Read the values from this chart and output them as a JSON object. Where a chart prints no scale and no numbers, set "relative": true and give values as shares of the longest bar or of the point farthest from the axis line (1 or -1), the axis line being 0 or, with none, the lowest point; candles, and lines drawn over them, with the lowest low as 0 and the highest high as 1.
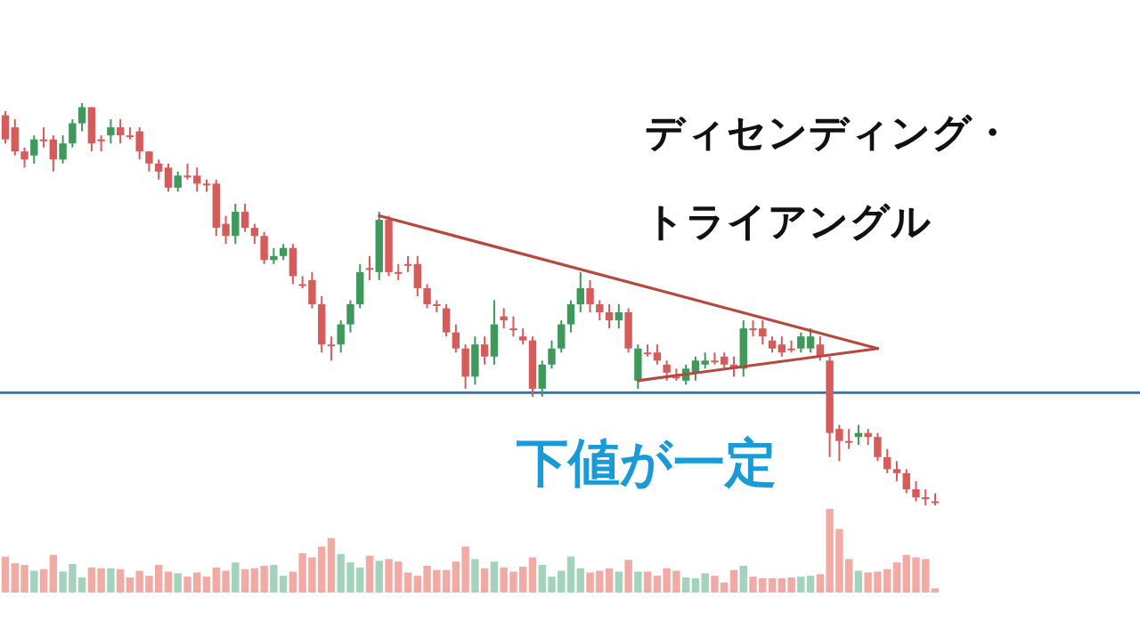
{
  "chart_data": [
    {
      "type": "candlestick",
      "relative": true,
      "categories": [
        null,
        null,
        null,
        null,
        null,
        null,
        null,
        null,
        null,
        null,
        null,
        null,
        null,
        null,
        null,
        null,
        null,
        null,
        null,
        null,
        null,
        null,
        null,
        null,
        null,
        null,
        null,
        null,
        null,
        null,
        null,
        null,
        null,
        null,
        null,
        null,
        null,
        null,
        null,
        null,
        null,
        null,
        null,
        null,
        null,
        null,
        null,
        null,
        null,
        null,
        null,
        null,
        null,
        null,
        null,
        null,
        null,
        null,
        null,
        null,
        null,
        null,
        null,
        null,
        null,
        null,
        null,
        null,
        null,
        null,
        null,
        null,
        null,
        null,
        null,
        null,
        null,
        null,
        null,
        null,
        null,
        null,
        null,
        null,
        null,
        null,
        null,
        null,
        null,
        null,
        null,
        null,
        null,
        null,
        null,
        null,
        null,
        null
      ],
      "ohlc": [
        [
          0.97,
          0.98,
          0.9,
          0.91
        ],
        [
          0.94,
          0.96,
          0.87,
          0.88
        ],
        [
          0.88,
          0.89,
          0.84,
          0.86
        ],
        [
          0.87,
          0.92,
          0.85,
          0.91
        ],
        [
          0.91,
          0.94,
          0.89,
          0.91
        ],
        [
          0.91,
          0.92,
          0.83,
          0.86
        ],
        [
          0.86,
          0.92,
          0.85,
          0.9
        ],
        [
          0.9,
          0.96,
          0.89,
          0.95
        ],
        [
          0.95,
          1.0,
          0.93,
          0.99
        ],
        [
          0.99,
          0.99,
          0.88,
          0.9
        ],
        [
          0.91,
          0.92,
          0.88,
          0.91
        ],
        [
          0.92,
          0.96,
          0.9,
          0.94
        ],
        [
          0.94,
          0.96,
          0.9,
          0.92
        ],
        [
          0.92,
          0.94,
          0.91,
          0.92
        ],
        [
          0.93,
          0.94,
          0.86,
          0.88
        ],
        [
          0.88,
          0.88,
          0.83,
          0.85
        ],
        [
          0.85,
          0.86,
          0.81,
          0.83
        ],
        [
          0.84,
          0.85,
          0.78,
          0.79
        ],
        [
          0.79,
          0.83,
          0.78,
          0.82
        ],
        [
          0.82,
          0.85,
          0.81,
          0.82
        ],
        [
          0.82,
          0.84,
          0.78,
          0.8
        ],
        [
          0.8,
          0.81,
          0.78,
          0.8
        ],
        [
          0.8,
          0.81,
          0.67,
          0.69
        ],
        [
          0.7,
          0.72,
          0.65,
          0.67
        ],
        [
          0.67,
          0.75,
          0.65,
          0.73
        ],
        [
          0.73,
          0.75,
          0.68,
          0.69
        ],
        [
          0.69,
          0.7,
          0.65,
          0.67
        ],
        [
          0.67,
          0.68,
          0.6,
          0.61
        ],
        [
          0.61,
          0.64,
          0.6,
          0.62
        ],
        [
          0.62,
          0.65,
          0.61,
          0.64
        ],
        [
          0.64,
          0.65,
          0.55,
          0.57
        ],
        [
          0.55,
          0.57,
          0.54,
          0.55
        ],
        [
          0.56,
          0.58,
          0.49,
          0.5
        ],
        [
          0.5,
          0.52,
          0.38,
          0.4
        ],
        [
          0.4,
          0.42,
          0.36,
          0.4
        ],
        [
          0.4,
          0.46,
          0.38,
          0.45
        ],
        [
          0.45,
          0.51,
          0.43,
          0.5
        ],
        [
          0.5,
          0.6,
          0.49,
          0.58
        ],
        [
          0.59,
          0.62,
          0.56,
          0.59
        ],
        [
          0.58,
          0.73,
          0.56,
          0.71
        ],
        [
          0.71,
          0.72,
          0.57,
          0.58
        ],
        [
          0.58,
          0.6,
          0.56,
          0.58
        ],
        [
          0.6,
          0.62,
          0.58,
          0.6
        ],
        [
          0.6,
          0.62,
          0.52,
          0.54
        ],
        [
          0.54,
          0.55,
          0.49,
          0.5
        ],
        [
          0.5,
          0.51,
          0.48,
          0.5
        ],
        [
          0.49,
          0.5,
          0.42,
          0.43
        ],
        [
          0.43,
          0.45,
          0.38,
          0.39
        ],
        [
          0.39,
          0.4,
          0.29,
          0.32
        ],
        [
          0.32,
          0.42,
          0.3,
          0.4
        ],
        [
          0.4,
          0.42,
          0.35,
          0.37
        ],
        [
          0.37,
          0.51,
          0.35,
          0.45
        ],
        [
          0.47,
          0.49,
          0.44,
          0.46
        ],
        [
          0.44,
          0.47,
          0.42,
          0.44
        ],
        [
          0.42,
          0.44,
          0.4,
          0.41
        ],
        [
          0.41,
          0.42,
          0.27,
          0.29
        ],
        [
          0.29,
          0.36,
          0.27,
          0.35
        ],
        [
          0.35,
          0.41,
          0.34,
          0.39
        ],
        [
          0.39,
          0.46,
          0.38,
          0.45
        ],
        [
          0.45,
          0.51,
          0.43,
          0.5
        ],
        [
          0.5,
          0.58,
          0.48,
          0.54
        ],
        [
          0.54,
          0.56,
          0.48,
          0.5
        ],
        [
          0.5,
          0.51,
          0.46,
          0.48
        ],
        [
          0.48,
          0.5,
          0.44,
          0.46
        ],
        [
          0.46,
          0.5,
          0.44,
          0.48
        ],
        [
          0.48,
          0.49,
          0.38,
          0.39
        ],
        [
          0.31,
          0.4,
          0.29,
          0.39
        ],
        [
          0.38,
          0.4,
          0.37,
          0.38
        ],
        [
          0.38,
          0.4,
          0.35,
          0.36
        ],
        [
          0.35,
          0.36,
          0.31,
          0.33
        ],
        [
          0.32,
          0.34,
          0.31,
          0.32
        ],
        [
          0.31,
          0.35,
          0.3,
          0.34
        ],
        [
          0.33,
          0.37,
          0.31,
          0.36
        ],
        [
          0.35,
          0.38,
          0.34,
          0.36
        ],
        [
          0.36,
          0.38,
          0.35,
          0.36
        ],
        [
          0.37,
          0.38,
          0.34,
          0.35
        ],
        [
          0.35,
          0.37,
          0.32,
          0.34
        ],
        [
          0.34,
          0.46,
          0.32,
          0.44
        ],
        [
          0.44,
          0.46,
          0.42,
          0.44
        ],
        [
          0.44,
          0.46,
          0.4,
          0.42
        ],
        [
          0.41,
          0.42,
          0.38,
          0.39
        ],
        [
          0.4,
          0.42,
          0.37,
          0.38
        ],
        [
          0.39,
          0.41,
          0.38,
          0.39
        ],
        [
          0.39,
          0.43,
          0.38,
          0.42
        ],
        [
          0.39,
          0.44,
          0.38,
          0.42
        ],
        [
          0.4,
          0.42,
          0.36,
          0.37
        ],
        [
          0.36,
          0.37,
          0.12,
          0.18
        ],
        [
          0.19,
          0.2,
          0.11,
          0.16
        ],
        [
          0.16,
          0.19,
          0.14,
          0.16
        ],
        [
          0.17,
          0.2,
          0.15,
          0.18
        ],
        [
          0.18,
          0.19,
          0.15,
          0.17
        ],
        [
          0.17,
          0.18,
          0.11,
          0.12
        ],
        [
          0.12,
          0.14,
          0.08,
          0.09
        ],
        [
          0.09,
          0.11,
          0.06,
          0.08
        ],
        [
          0.08,
          0.09,
          0.03,
          0.04
        ],
        [
          0.04,
          0.06,
          0.01,
          0.02
        ],
        [
          0.02,
          0.04,
          0.0,
          0.02
        ],
        [
          0.01,
          0.03,
          0.0,
          0.01
        ]
      ],
      "colors": [
        "#d55c5a",
        "#d55c5a",
        "#d55c5a",
        "#3d9a5c",
        "#d55c5a",
        "#d55c5a",
        "#3d9a5c",
        "#3d9a5c",
        "#3d9a5c",
        "#d55c5a",
        "#d55c5a",
        "#3d9a5c",
        "#d55c5a",
        "#d55c5a",
        "#d55c5a",
        "#d55c5a",
        "#d55c5a",
        "#d55c5a",
        "#3d9a5c",
        "#d55c5a",
        "#d55c5a",
        "#d55c5a",
        "#d55c5a",
        "#d55c5a",
        "#3d9a5c",
        "#d55c5a",
        "#d55c5a",
        "#d55c5a",
        "#3d9a5c",
        "#3d9a5c",
        "#d55c5a",
        "#d55c5a",
        "#d55c5a",
        "#d55c5a",
        "#d55c5a",
        "#3d9a5c",
        "#3d9a5c",
        "#3d9a5c",
        "#d55c5a",
        "#3d9a5c",
        "#d55c5a",
        "#d55c5a",
        "#d55c5a",
        "#d55c5a",
        "#d55c5a",
        "#d55c5a",
        "#d55c5a",
        "#d55c5a",
        "#d55c5a",
        "#3d9a5c",
        "#d55c5a",
        "#3d9a5c",
        "#d55c5a",
        "#d55c5a",
        "#d55c5a",
        "#d55c5a",
        "#3d9a5c",
        "#3d9a5c",
        "#3d9a5c",
        "#3d9a5c",
        "#3d9a5c",
        "#d55c5a",
        "#d55c5a",
        "#d55c5a",
        "#3d9a5c",
        "#d55c5a",
        "#3d9a5c",
        "#d55c5a",
        "#d55c5a",
        "#d55c5a",
        "#d55c5a",
        "#3d9a5c",
        "#3d9a5c",
        "#3d9a5c",
        "#d55c5a",
        "#d55c5a",
        "#d55c5a",
        "#3d9a5c",
        "#d55c5a",
        "#d55c5a",
        "#d55c5a",
        "#d55c5a",
        "#d55c5a",
        "#3d9a5c",
        "#3d9a5c",
        "#d55c5a",
        "#d55c5a",
        "#d55c5a",
        "#d55c5a",
        "#3d9a5c",
        "#d55c5a",
        "#d55c5a",
        "#d55c5a",
        "#d55c5a",
        "#d55c5a",
        "#d55c5a",
        "#d55c5a",
        "#d55c5a"
      ],
      "series": [
        {
          "type": "line",
          "color": "#b5483f",
          "values": [
            null,
            null,
            null,
            null,
            null,
            null,
            null,
            null,
            null,
            null,
            null,
            null,
            null,
            null,
            null,
            null,
            null,
            null,
            null,
            null,
            null,
            null,
            null,
            null,
            null,
            null,
            null,
            null,
            null,
            null,
            null,
            null,
            null,
            null,
            null,
            null,
            null,
            null,
            null,
            0.72,
            null,
            null,
            null,
            null,
            null,
            null,
            null,
            null,
            null,
            null,
            null,
            null,
            null,
            null,
            null,
            null,
            null,
            null,
            null,
            null,
            null,
            null,
            null,
            null,
            null,
            null,
            null,
            null,
            null,
            null,
            null,
            null,
            null,
            null,
            null,
            null,
            null,
            null,
            null,
            null,
            null,
            null,
            null,
            null,
            null,
            null,
            null,
            null,
            null,
            null,
            null,
            0.39,
            null,
            null,
            null,
            null,
            null,
            null
          ]
        },
        {
          "type": "line",
          "color": "#b5483f",
          "values": [
            null,
            null,
            null,
            null,
            null,
            null,
            null,
            null,
            null,
            null,
            null,
            null,
            null,
            null,
            null,
            null,
            null,
            null,
            null,
            null,
            null,
            null,
            null,
            null,
            null,
            null,
            null,
            null,
            null,
            null,
            null,
            null,
            null,
            null,
            null,
            null,
            null,
            null,
            null,
            null,
            null,
            null,
            null,
            null,
            null,
            null,
            null,
            null,
            null,
            null,
            null,
            null,
            null,
            null,
            null,
            null,
            null,
            null,
            null,
            null,
            null,
            null,
            null,
            null,
            null,
            null,
            0.31,
            null,
            null,
            null,
            null,
            null,
            null,
            null,
            null,
            null,
            null,
            null,
            null,
            null,
            null,
            null,
            null,
            null,
            null,
            null,
            null,
            null,
            null,
            null,
            null,
            0.39,
            null,
            null,
            null,
            null,
            null,
            null
          ]
        }
      ],
      "ref_lines": [
        {
          "axis": "y",
          "value": 0.28,
          "color": "#3b6ea5"
        }
      ],
      "annotations": [
        "ディセンディング・",
        "トライアングル",
        "下値が一定"
      ]
    },
    {
      "type": "bar",
      "relative": true,
      "categories": [
        null,
        null,
        null,
        null,
        null,
        null,
        null,
        null,
        null,
        null,
        null,
        null,
        null,
        null,
        null,
        null,
        null,
        null,
        null,
        null,
        null,
        null,
        null,
        null,
        null,
        null,
        null,
        null,
        null,
        null,
        null,
        null,
        null,
        null,
        null,
        null,
        null,
        null,
        null,
        null,
        null,
        null,
        null,
        null,
        null,
        null,
        null,
        null,
        null,
        null,
        null,
        null,
        null,
        null,
        null,
        null,
        null,
        null,
        null,
        null,
        null,
        null,
        null,
        null,
        null,
        null,
        null,
        null,
        null,
        null,
        null,
        null,
        null,
        null,
        null,
        null,
        null,
        null,
        null,
        null,
        null,
        null,
        null,
        null,
        null,
        null,
        null,
        null,
        null,
        null,
        null,
        null,
        null,
        null,
        null,
        null,
        null,
        null
      ],
      "values": [
        0.43,
        0.35,
        0.33,
        0.26,
        0.28,
        0.45,
        0.25,
        0.34,
        0.18,
        0.3,
        0.29,
        0.29,
        0.28,
        0.18,
        0.26,
        0.2,
        0.33,
        0.25,
        0.23,
        0.19,
        0.24,
        0.19,
        0.3,
        0.26,
        0.36,
        0.28,
        0.29,
        0.32,
        0.33,
        0.2,
        0.25,
        0.47,
        0.42,
        0.55,
        0.65,
        0.46,
        0.36,
        0.3,
        0.44,
        0.38,
        0.4,
        0.37,
        0.24,
        0.2,
        0.32,
        0.27,
        0.27,
        0.37,
        0.55,
        0.4,
        0.29,
        0.37,
        0.3,
        0.25,
        0.31,
        0.42,
        0.33,
        0.19,
        0.26,
        0.43,
        0.29,
        0.24,
        0.26,
        0.29,
        0.25,
        0.39,
        0.25,
        0.25,
        0.2,
        0.29,
        0.26,
        0.18,
        0.17,
        0.23,
        0.2,
        0.12,
        0.27,
        0.32,
        0.19,
        0.17,
        0.17,
        0.17,
        0.18,
        0.19,
        0.2,
        0.22,
        1.0,
        0.76,
        0.4,
        0.26,
        0.24,
        0.25,
        0.28,
        0.36,
        0.45,
        0.42,
        0.4,
        0.05
      ],
      "colors": [
        "#f2aaa5",
        "#f2aaa5",
        "#f2aaa5",
        "#a3d4bb",
        "#f2aaa5",
        "#f2aaa5",
        "#a3d4bb",
        "#a3d4bb",
        "#a3d4bb",
        "#f2aaa5",
        "#f2aaa5",
        "#a3d4bb",
        "#f2aaa5",
        "#f2aaa5",
        "#f2aaa5",
        "#f2aaa5",
        "#f2aaa5",
        "#f2aaa5",
        "#a3d4bb",
        "#f2aaa5",
        "#f2aaa5",
        "#f2aaa5",
        "#f2aaa5",
        "#f2aaa5",
        "#a3d4bb",
        "#f2aaa5",
        "#f2aaa5",
        "#f2aaa5",
        "#a3d4bb",
        "#a3d4bb",
        "#f2aaa5",
        "#f2aaa5",
        "#f2aaa5",
        "#f2aaa5",
        "#f2aaa5",
        "#a3d4bb",
        "#a3d4bb",
        "#a3d4bb",
        "#f2aaa5",
        "#a3d4bb",
        "#f2aaa5",
        "#f2aaa5",
        "#f2aaa5",
        "#f2aaa5",
        "#f2aaa5",
        "#f2aaa5",
        "#f2aaa5",
        "#f2aaa5",
        "#f2aaa5",
        "#a3d4bb",
        "#f2aaa5",
        "#a3d4bb",
        "#f2aaa5",
        "#f2aaa5",
        "#f2aaa5",
        "#f2aaa5",
        "#a3d4bb",
        "#a3d4bb",
        "#a3d4bb",
        "#a3d4bb",
        "#a3d4bb",
        "#f2aaa5",
        "#f2aaa5",
        "#f2aaa5",
        "#a3d4bb",
        "#f2aaa5",
        "#a3d4bb",
        "#f2aaa5",
        "#f2aaa5",
        "#f2aaa5",
        "#f2aaa5",
        "#a3d4bb",
        "#a3d4bb",
        "#a3d4bb",
        "#f2aaa5",
        "#f2aaa5",
        "#f2aaa5",
        "#a3d4bb",
        "#f2aaa5",
        "#f2aaa5",
        "#f2aaa5",
        "#f2aaa5",
        "#f2aaa5",
        "#a3d4bb",
        "#a3d4bb",
        "#f2aaa5",
        "#f2aaa5",
        "#f2aaa5",
        "#f2aaa5",
        "#a3d4bb",
        "#f2aaa5",
        "#f2aaa5",
        "#f2aaa5",
        "#f2aaa5",
        "#f2aaa5",
        "#f2aaa5",
        "#f2aaa5",
        "#f2aaa5"
      ]
    }
  ]
}
